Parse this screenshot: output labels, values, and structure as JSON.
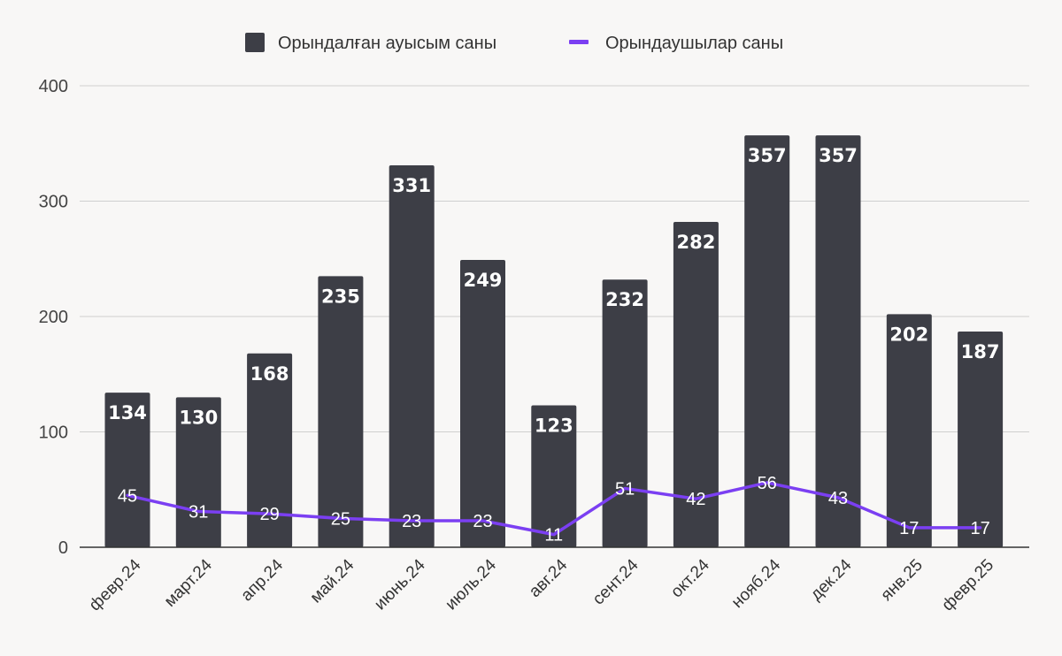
{
  "chart_data": {
    "type": "bar",
    "categories": [
      "февр.24",
      "март.24",
      "апр.24",
      "май.24",
      "июнь.24",
      "июль.24",
      "авг.24",
      "сент.24",
      "окт.24",
      "нояб.24",
      "дек.24",
      "янв.25",
      "февр.25"
    ],
    "series": [
      {
        "name": "Орындалған ауысым саны",
        "type": "bar",
        "color": "#3d3e46",
        "values": [
          134,
          130,
          168,
          235,
          331,
          249,
          123,
          232,
          282,
          357,
          357,
          202,
          187
        ]
      },
      {
        "name": "Орындаушылар саны",
        "type": "line",
        "color": "#7b3ff2",
        "values": [
          45,
          31,
          29,
          25,
          23,
          23,
          11,
          51,
          42,
          56,
          43,
          17,
          17
        ]
      }
    ],
    "ylim": [
      0,
      400
    ],
    "yticks": [
      0,
      100,
      200,
      300,
      400
    ],
    "grid": true,
    "legend_position": "top-center"
  }
}
